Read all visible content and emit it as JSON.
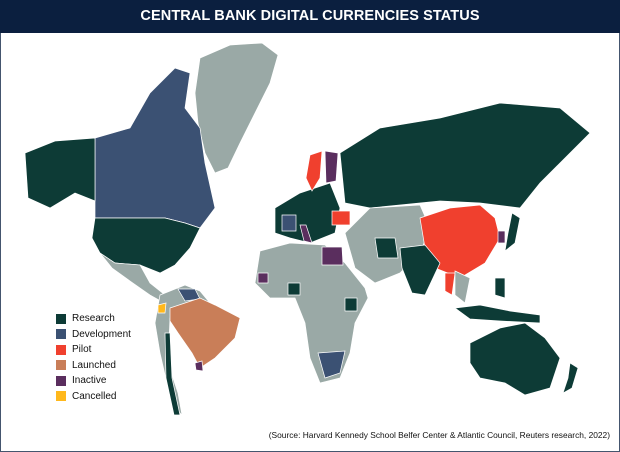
{
  "title": "CENTRAL BANK DIGITAL CURRENCIES STATUS",
  "legend": [
    {
      "label": "Research",
      "color": "#0d3b36"
    },
    {
      "label": "Development",
      "color": "#3b5173"
    },
    {
      "label": "Pilot",
      "color": "#f0402e"
    },
    {
      "label": "Launched",
      "color": "#c97e58"
    },
    {
      "label": "Inactive",
      "color": "#5a2e5e"
    },
    {
      "label": "Cancelled",
      "color": "#ffb81c"
    }
  ],
  "no_data_color": "#9aa9a6",
  "source": "(Source: Harvard Kennedy School Belfer Center & Atlantic Council, Reuters research, 2022)"
}
